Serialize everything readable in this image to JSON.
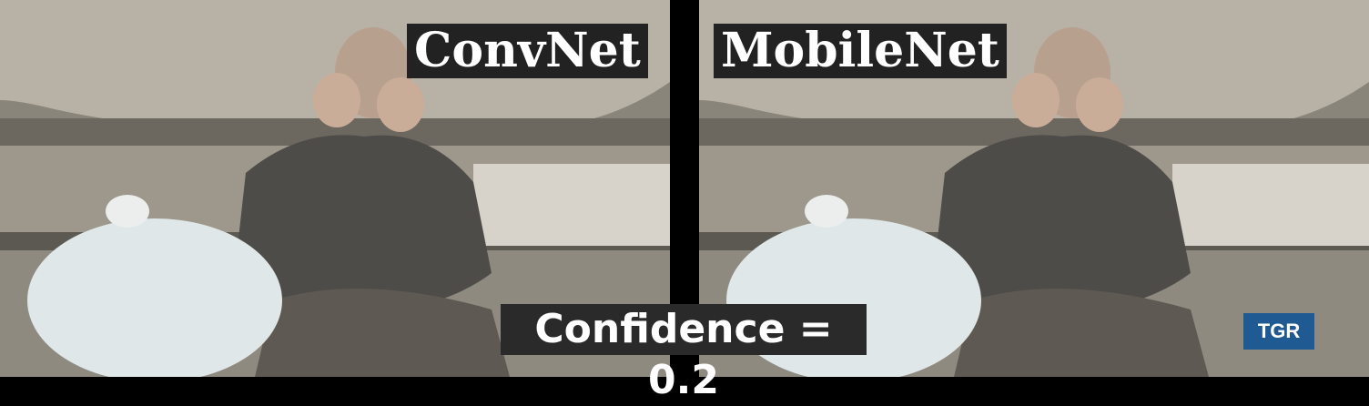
{
  "left_panel": {
    "label": "ConvNet"
  },
  "right_panel": {
    "label": "MobileNet"
  },
  "overlay": {
    "confidence_text": "Confidence = 0.2"
  },
  "watermark": {
    "text": "TGR"
  },
  "colors": {
    "label_bg": "#222222",
    "tgr_bg": "#1f5a92"
  }
}
